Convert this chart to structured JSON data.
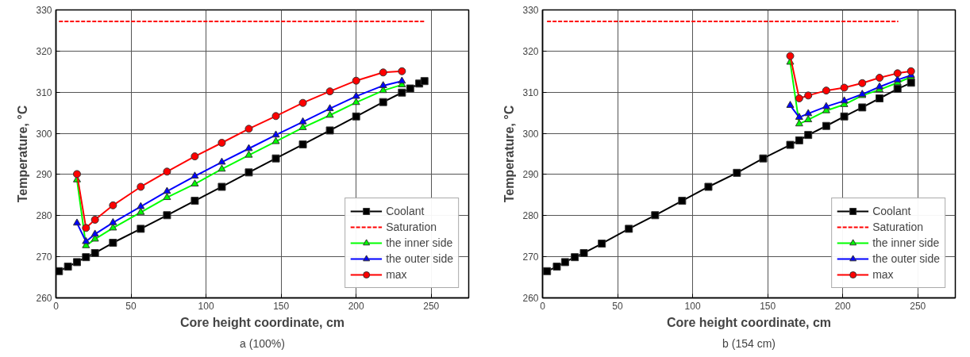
{
  "chart_data": [
    {
      "type": "line",
      "xlabel": "Core height coordinate, cm",
      "ylabel": "Temperature, °C",
      "annotations": [
        "a (100%)"
      ],
      "xlim": [
        0,
        275
      ],
      "ylim": [
        260,
        330
      ],
      "xticks": [
        0,
        50,
        100,
        150,
        200,
        250
      ],
      "yticks": [
        260,
        270,
        280,
        290,
        300,
        310,
        320,
        330
      ],
      "grid": true,
      "legend": "bottom right",
      "series": [
        {
          "name": "Coolant",
          "color": "#000000",
          "marker": "square",
          "line_style": "solid",
          "x": [
            2,
            8,
            14,
            20,
            26,
            38,
            56.5,
            74,
            92.5,
            110.5,
            128.5,
            146.5,
            164.5,
            182.5,
            200,
            218,
            230.5,
            236,
            242,
            245.5
          ],
          "values": [
            266.5,
            267.6,
            268.7,
            269.9,
            270.9,
            273.4,
            276.8,
            280.1,
            283.6,
            287.0,
            290.5,
            293.9,
            297.3,
            300.7,
            304.1,
            307.6,
            309.9,
            310.9,
            312.1,
            312.7
          ]
        },
        {
          "name": "Saturation",
          "color": "#ff0000",
          "marker": "none",
          "line_style": "dashed",
          "x": [
            2,
            246
          ],
          "values": [
            327.2,
            327.2
          ]
        },
        {
          "name": "the inner side",
          "color": "#00ff00",
          "marker": "triangle",
          "line_style": "solid",
          "x": [
            14,
            20,
            26,
            38,
            56.5,
            74,
            92.5,
            110.5,
            128.5,
            146.5,
            164.5,
            182.5,
            200,
            218,
            230.5
          ],
          "values": [
            288.7,
            272.7,
            274.3,
            277.0,
            280.8,
            284.4,
            287.7,
            291.3,
            294.7,
            298.0,
            301.4,
            304.4,
            307.5,
            310.4,
            311.8
          ]
        },
        {
          "name": "the outer side",
          "color": "#0000ff",
          "marker": "triangle",
          "line_style": "solid",
          "x": [
            14,
            20,
            26,
            38,
            56.5,
            74,
            92.5,
            110.5,
            128.5,
            146.5,
            164.5,
            182.5,
            200,
            218,
            230.5
          ],
          "values": [
            278.2,
            273.7,
            275.5,
            278.3,
            282.2,
            285.9,
            289.6,
            293.0,
            296.3,
            299.6,
            302.8,
            306.0,
            309.0,
            311.6,
            312.7
          ]
        },
        {
          "name": "max",
          "color": "#ff0000",
          "marker": "circle",
          "line_style": "solid",
          "x": [
            14,
            20,
            26,
            38,
            56.5,
            74,
            92.5,
            110.5,
            128.5,
            146.5,
            164.5,
            182.5,
            200,
            218,
            230.5
          ],
          "values": [
            290.1,
            277.0,
            279.0,
            282.5,
            287.0,
            290.7,
            294.4,
            297.7,
            301.1,
            304.2,
            307.4,
            310.2,
            312.8,
            314.8,
            315.1
          ]
        }
      ]
    },
    {
      "type": "line",
      "xlabel": "Core height coordinate, cm",
      "ylabel": "Temperature, °C",
      "annotations": [
        "b (154 cm)"
      ],
      "xlim": [
        0,
        275
      ],
      "ylim": [
        260,
        330
      ],
      "xticks": [
        0,
        50,
        100,
        150,
        200,
        250
      ],
      "yticks": [
        260,
        270,
        280,
        290,
        300,
        310,
        320,
        330
      ],
      "grid": true,
      "legend": "bottom right",
      "series": [
        {
          "name": "Coolant",
          "color": "#000000",
          "marker": "square",
          "line_style": "solid",
          "x": [
            3,
            9.5,
            15,
            21.5,
            27.5,
            39.5,
            57.5,
            75,
            93,
            110.5,
            129.5,
            147,
            165,
            171,
            177,
            189,
            201,
            213,
            224.5,
            236.5,
            245.5
          ],
          "values": [
            266.5,
            267.6,
            268.7,
            269.9,
            270.9,
            273.2,
            276.8,
            280.1,
            283.6,
            287.0,
            290.4,
            293.9,
            297.2,
            298.3,
            299.6,
            301.8,
            304.1,
            306.3,
            308.5,
            310.8,
            312.3
          ]
        },
        {
          "name": "Saturation",
          "color": "#ff0000",
          "marker": "none",
          "line_style": "dashed",
          "x": [
            3,
            237
          ],
          "values": [
            327.2,
            327.2
          ]
        },
        {
          "name": "the inner side",
          "color": "#00ff00",
          "marker": "triangle",
          "line_style": "solid",
          "x": [
            165,
            171,
            177,
            189,
            201,
            213,
            224.5,
            236.5,
            245.5
          ],
          "values": [
            317.3,
            302.3,
            303.3,
            305.5,
            307.0,
            309.2,
            310.6,
            312.3,
            313.7
          ]
        },
        {
          "name": "the outer side",
          "color": "#0000ff",
          "marker": "triangle",
          "line_style": "solid",
          "x": [
            165,
            171,
            177,
            189,
            201,
            213,
            224.5,
            236.5,
            245.5
          ],
          "values": [
            306.8,
            303.9,
            304.8,
            306.5,
            307.9,
            309.5,
            311.3,
            313.0,
            314.1
          ]
        },
        {
          "name": "max",
          "color": "#ff0000",
          "marker": "circle",
          "line_style": "solid",
          "x": [
            165,
            171,
            177,
            189,
            201,
            213,
            224.5,
            236.5,
            245.5
          ],
          "values": [
            318.8,
            308.5,
            309.2,
            310.4,
            311.1,
            312.2,
            313.5,
            314.6,
            315.1
          ]
        }
      ]
    }
  ]
}
